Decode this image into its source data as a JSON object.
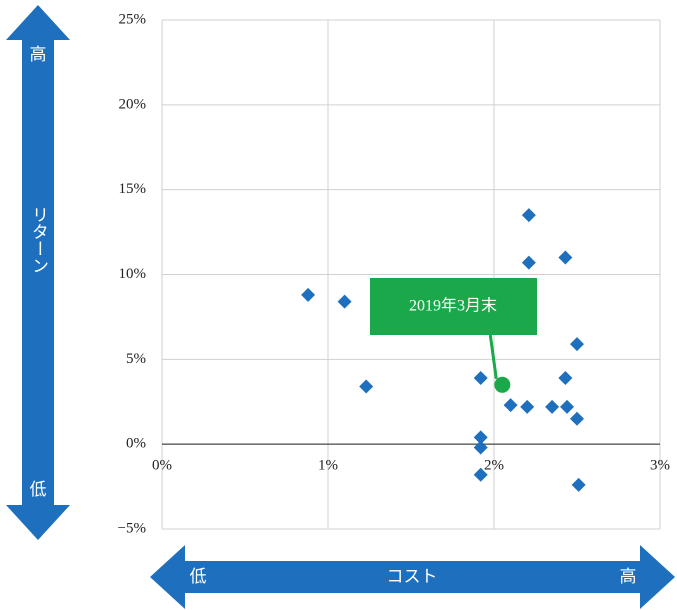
{
  "chart_data": {
    "type": "scatter",
    "xlim": [
      0,
      3
    ],
    "xticks": [
      {
        "value": 0,
        "label": "0%"
      },
      {
        "value": 1,
        "label": "1%"
      },
      {
        "value": 2,
        "label": "2%"
      },
      {
        "value": 3,
        "label": "3%"
      }
    ],
    "ylim": [
      -5,
      25
    ],
    "yticks": [
      {
        "value": -5,
        "label": "−5%"
      },
      {
        "value": 0,
        "label": "0%"
      },
      {
        "value": 5,
        "label": "5%"
      },
      {
        "value": 10,
        "label": "10%"
      },
      {
        "value": 15,
        "label": "15%"
      },
      {
        "value": 20,
        "label": "20%"
      },
      {
        "value": 25,
        "label": "25%"
      }
    ],
    "grid": true,
    "y_axis": {
      "label": "リターン",
      "high": "高",
      "low": "低"
    },
    "x_axis": {
      "label": "コスト",
      "high": "高",
      "low": "低"
    },
    "series": [
      {
        "color": "#1f6fbf",
        "x": [
          0.88,
          1.1,
          1.23,
          1.92,
          1.92,
          1.92,
          1.92,
          2.1,
          2.2,
          2.21,
          2.21,
          2.35,
          2.43,
          2.43,
          2.44,
          2.5,
          2.5,
          2.51
        ],
        "values": [
          8.8,
          8.4,
          3.4,
          3.9,
          0.4,
          -0.2,
          -1.8,
          2.3,
          2.2,
          13.5,
          10.7,
          2.2,
          11.0,
          3.9,
          2.2,
          5.9,
          1.5,
          -2.4
        ]
      }
    ],
    "highlight": {
      "x": 2.05,
      "y": 3.5,
      "label": "2019年3月末",
      "color": "#1aa84a"
    }
  }
}
